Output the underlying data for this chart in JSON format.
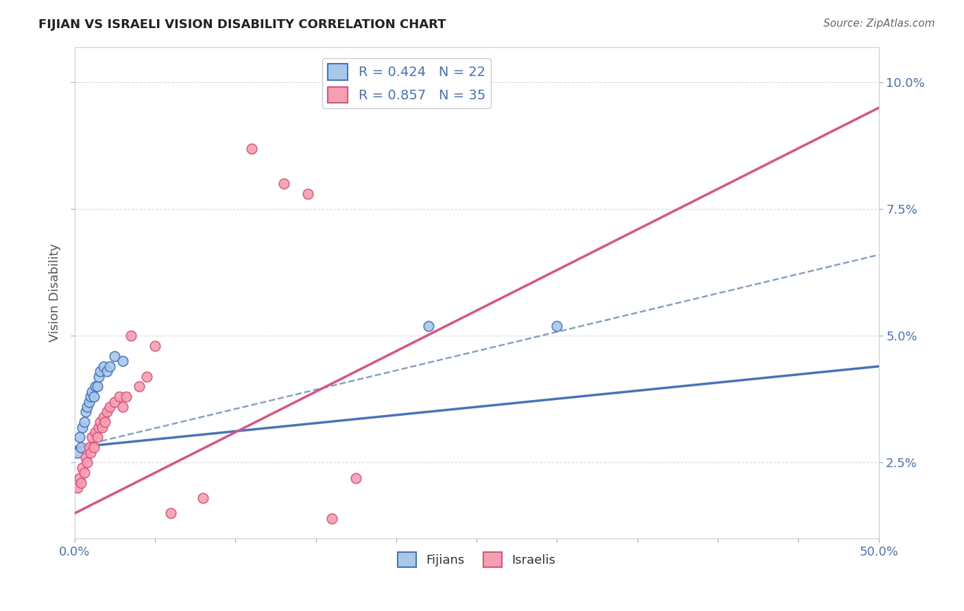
{
  "title": "FIJIAN VS ISRAELI VISION DISABILITY CORRELATION CHART",
  "source_text": "Source: ZipAtlas.com",
  "ylabel": "Vision Disability",
  "xlim": [
    0.0,
    0.5
  ],
  "ylim": [
    0.01,
    0.107
  ],
  "ytick_labels": [
    "2.5%",
    "5.0%",
    "7.5%",
    "10.0%"
  ],
  "ytick_vals": [
    0.025,
    0.05,
    0.075,
    0.1
  ],
  "fijian_color": "#a8c8e8",
  "israeli_color": "#f4a0b0",
  "fijian_line_color": "#4472c4",
  "israeli_line_color": "#e05080",
  "fijian_x": [
    0.002,
    0.003,
    0.004,
    0.005,
    0.006,
    0.007,
    0.008,
    0.009,
    0.01,
    0.011,
    0.012,
    0.013,
    0.014,
    0.015,
    0.016,
    0.018,
    0.02,
    0.022,
    0.025,
    0.03,
    0.22,
    0.3
  ],
  "fijian_y": [
    0.027,
    0.03,
    0.028,
    0.032,
    0.033,
    0.035,
    0.036,
    0.037,
    0.038,
    0.039,
    0.038,
    0.04,
    0.04,
    0.042,
    0.043,
    0.044,
    0.043,
    0.044,
    0.046,
    0.045,
    0.052,
    0.052
  ],
  "israeli_x": [
    0.002,
    0.003,
    0.004,
    0.005,
    0.006,
    0.007,
    0.008,
    0.009,
    0.01,
    0.011,
    0.012,
    0.013,
    0.014,
    0.015,
    0.016,
    0.017,
    0.018,
    0.019,
    0.02,
    0.022,
    0.025,
    0.028,
    0.03,
    0.032,
    0.035,
    0.04,
    0.045,
    0.05,
    0.06,
    0.08,
    0.11,
    0.13,
    0.145,
    0.16,
    0.175
  ],
  "israeli_y": [
    0.02,
    0.022,
    0.021,
    0.024,
    0.023,
    0.026,
    0.025,
    0.028,
    0.027,
    0.03,
    0.028,
    0.031,
    0.03,
    0.032,
    0.033,
    0.032,
    0.034,
    0.033,
    0.035,
    0.036,
    0.037,
    0.038,
    0.036,
    0.038,
    0.05,
    0.04,
    0.042,
    0.048,
    0.015,
    0.018,
    0.087,
    0.08,
    0.078,
    0.014,
    0.022
  ],
  "background_color": "#ffffff",
  "grid_color": "#d0d0d0",
  "dashed_color": "#7090c0"
}
